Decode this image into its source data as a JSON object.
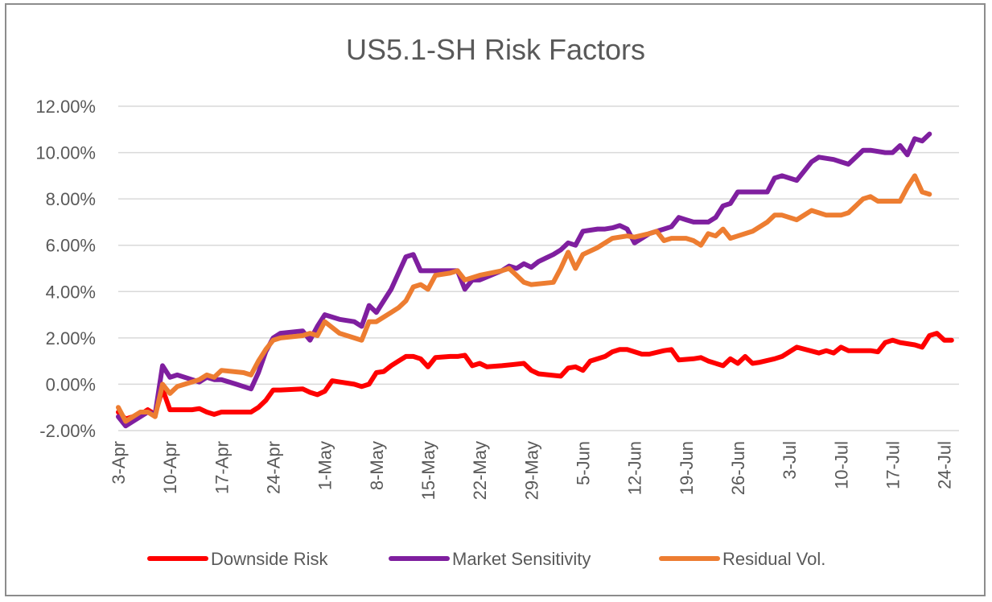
{
  "chart_data": {
    "type": "line",
    "title": "US5.1-SH Risk Factors",
    "xlabel": "",
    "ylabel": "",
    "ylim": [
      -2,
      12
    ],
    "y_ticks": [
      "12.00%",
      "10.00%",
      "8.00%",
      "6.00%",
      "4.00%",
      "2.00%",
      "0.00%",
      "-2.00%"
    ],
    "y_tick_values": [
      12,
      10,
      8,
      6,
      4,
      2,
      0,
      -2
    ],
    "x_tick_labels": [
      "3-Apr",
      "10-Apr",
      "17-Apr",
      "24-Apr",
      "1-May",
      "8-May",
      "15-May",
      "22-May",
      "29-May",
      "5-Jun",
      "12-Jun",
      "19-Jun",
      "26-Jun",
      "3-Jul",
      "10-Jul",
      "17-Jul",
      "24-Jul"
    ],
    "x_tick_days": [
      0,
      7,
      14,
      21,
      28,
      35,
      42,
      49,
      56,
      63,
      70,
      77,
      84,
      91,
      98,
      105,
      112
    ],
    "x_start": "3-Apr",
    "x_end": "25-Jul",
    "grid": true,
    "legend_position": "bottom",
    "series": [
      {
        "name": "Downside Risk",
        "color": "#ff0000",
        "points": [
          [
            0,
            -1.2
          ],
          [
            1,
            -1.5
          ],
          [
            2,
            -1.4
          ],
          [
            3,
            -1.3
          ],
          [
            4,
            -1.1
          ],
          [
            5,
            -1.3
          ],
          [
            6,
            -0.2
          ],
          [
            7,
            -1.1
          ],
          [
            8,
            -1.1
          ],
          [
            10,
            -1.1
          ],
          [
            11,
            -1.05
          ],
          [
            12,
            -1.2
          ],
          [
            13,
            -1.3
          ],
          [
            14,
            -1.2
          ],
          [
            17,
            -1.2
          ],
          [
            18,
            -1.2
          ],
          [
            19,
            -1.0
          ],
          [
            20,
            -0.7
          ],
          [
            21,
            -0.25
          ],
          [
            22,
            -0.25
          ],
          [
            25,
            -0.2
          ],
          [
            26,
            -0.35
          ],
          [
            27,
            -0.45
          ],
          [
            28,
            -0.3
          ],
          [
            29,
            0.15
          ],
          [
            30,
            0.1
          ],
          [
            32,
            0.0
          ],
          [
            33,
            -0.1
          ],
          [
            34,
            0.0
          ],
          [
            35,
            0.5
          ],
          [
            36,
            0.55
          ],
          [
            37,
            0.8
          ],
          [
            38,
            1.0
          ],
          [
            39,
            1.2
          ],
          [
            40,
            1.2
          ],
          [
            41,
            1.1
          ],
          [
            42,
            0.75
          ],
          [
            43,
            1.15
          ],
          [
            45,
            1.2
          ],
          [
            46,
            1.2
          ],
          [
            47,
            1.25
          ],
          [
            48,
            0.8
          ],
          [
            49,
            0.9
          ],
          [
            50,
            0.75
          ],
          [
            52,
            0.8
          ],
          [
            55,
            0.9
          ],
          [
            56,
            0.6
          ],
          [
            57,
            0.45
          ],
          [
            60,
            0.35
          ],
          [
            61,
            0.7
          ],
          [
            62,
            0.75
          ],
          [
            63,
            0.6
          ],
          [
            64,
            1.0
          ],
          [
            66,
            1.2
          ],
          [
            67,
            1.4
          ],
          [
            68,
            1.5
          ],
          [
            69,
            1.5
          ],
          [
            70,
            1.4
          ],
          [
            71,
            1.3
          ],
          [
            72,
            1.3
          ],
          [
            74,
            1.45
          ],
          [
            75,
            1.5
          ],
          [
            76,
            1.05
          ],
          [
            78,
            1.1
          ],
          [
            79,
            1.15
          ],
          [
            80,
            1.0
          ],
          [
            82,
            0.8
          ],
          [
            83,
            1.1
          ],
          [
            84,
            0.9
          ],
          [
            85,
            1.2
          ],
          [
            86,
            0.9
          ],
          [
            87,
            0.95
          ],
          [
            89,
            1.1
          ],
          [
            90,
            1.2
          ],
          [
            92,
            1.6
          ],
          [
            95,
            1.35
          ],
          [
            96,
            1.45
          ],
          [
            97,
            1.35
          ],
          [
            98,
            1.6
          ],
          [
            99,
            1.45
          ],
          [
            102,
            1.45
          ],
          [
            103,
            1.4
          ],
          [
            104,
            1.8
          ],
          [
            105,
            1.9
          ],
          [
            106,
            1.8
          ],
          [
            108,
            1.7
          ],
          [
            109,
            1.6
          ],
          [
            110,
            2.1
          ],
          [
            111,
            2.2
          ],
          [
            112,
            1.9
          ],
          [
            113,
            1.9
          ]
        ]
      },
      {
        "name": "Market Sensitivity",
        "color": "#7f1f9f",
        "points": [
          [
            0,
            -1.4
          ],
          [
            1,
            -1.8
          ],
          [
            2,
            -1.6
          ],
          [
            3,
            -1.4
          ],
          [
            4,
            -1.2
          ],
          [
            5,
            -1.3
          ],
          [
            6,
            0.8
          ],
          [
            7,
            0.3
          ],
          [
            8,
            0.4
          ],
          [
            10,
            0.2
          ],
          [
            11,
            0.1
          ],
          [
            12,
            0.3
          ],
          [
            13,
            0.2
          ],
          [
            14,
            0.2
          ],
          [
            16,
            0.0
          ],
          [
            17,
            -0.1
          ],
          [
            18,
            -0.2
          ],
          [
            19,
            0.5
          ],
          [
            20,
            1.4
          ],
          [
            21,
            2.0
          ],
          [
            22,
            2.2
          ],
          [
            25,
            2.3
          ],
          [
            26,
            1.9
          ],
          [
            27,
            2.5
          ],
          [
            28,
            3.0
          ],
          [
            30,
            2.8
          ],
          [
            32,
            2.7
          ],
          [
            33,
            2.5
          ],
          [
            34,
            3.4
          ],
          [
            35,
            3.1
          ],
          [
            36,
            3.6
          ],
          [
            37,
            4.1
          ],
          [
            38,
            4.8
          ],
          [
            39,
            5.5
          ],
          [
            40,
            5.6
          ],
          [
            41,
            4.9
          ],
          [
            42,
            4.9
          ],
          [
            44,
            4.9
          ],
          [
            46,
            4.9
          ],
          [
            47,
            4.1
          ],
          [
            48,
            4.5
          ],
          [
            49,
            4.5
          ],
          [
            52,
            4.9
          ],
          [
            53,
            5.1
          ],
          [
            54,
            5.0
          ],
          [
            55,
            5.2
          ],
          [
            56,
            5.05
          ],
          [
            57,
            5.3
          ],
          [
            58,
            5.45
          ],
          [
            59,
            5.6
          ],
          [
            60,
            5.8
          ],
          [
            61,
            6.1
          ],
          [
            62,
            6.0
          ],
          [
            63,
            6.6
          ],
          [
            65,
            6.7
          ],
          [
            66,
            6.7
          ],
          [
            67,
            6.75
          ],
          [
            68,
            6.85
          ],
          [
            69,
            6.7
          ],
          [
            70,
            6.1
          ],
          [
            72,
            6.5
          ],
          [
            74,
            6.7
          ],
          [
            75,
            6.8
          ],
          [
            76,
            7.2
          ],
          [
            77,
            7.1
          ],
          [
            78,
            7.0
          ],
          [
            80,
            7.0
          ],
          [
            81,
            7.2
          ],
          [
            82,
            7.7
          ],
          [
            83,
            7.8
          ],
          [
            84,
            8.3
          ],
          [
            86,
            8.3
          ],
          [
            88,
            8.3
          ],
          [
            89,
            8.9
          ],
          [
            90,
            9.0
          ],
          [
            92,
            8.8
          ],
          [
            93,
            9.2
          ],
          [
            94,
            9.6
          ],
          [
            95,
            9.8
          ],
          [
            97,
            9.7
          ],
          [
            98,
            9.6
          ],
          [
            99,
            9.5
          ],
          [
            100,
            9.8
          ],
          [
            101,
            10.1
          ],
          [
            102,
            10.1
          ],
          [
            104,
            10.0
          ],
          [
            105,
            10.0
          ],
          [
            106,
            10.3
          ],
          [
            107,
            9.9
          ],
          [
            108,
            10.6
          ],
          [
            109,
            10.5
          ],
          [
            110,
            10.8
          ]
        ]
      },
      {
        "name": "Residual Vol.",
        "color": "#ed7d31",
        "points": [
          [
            0,
            -1.0
          ],
          [
            1,
            -1.6
          ],
          [
            2,
            -1.4
          ],
          [
            3,
            -1.2
          ],
          [
            4,
            -1.2
          ],
          [
            5,
            -1.4
          ],
          [
            6,
            0.0
          ],
          [
            7,
            -0.4
          ],
          [
            8,
            -0.1
          ],
          [
            10,
            0.1
          ],
          [
            11,
            0.2
          ],
          [
            12,
            0.4
          ],
          [
            13,
            0.3
          ],
          [
            14,
            0.6
          ],
          [
            17,
            0.5
          ],
          [
            18,
            0.4
          ],
          [
            19,
            1.0
          ],
          [
            20,
            1.5
          ],
          [
            21,
            1.9
          ],
          [
            22,
            2.0
          ],
          [
            25,
            2.1
          ],
          [
            26,
            2.2
          ],
          [
            27,
            2.1
          ],
          [
            28,
            2.7
          ],
          [
            30,
            2.2
          ],
          [
            31,
            2.1
          ],
          [
            33,
            1.9
          ],
          [
            34,
            2.7
          ],
          [
            35,
            2.7
          ],
          [
            36,
            2.9
          ],
          [
            37,
            3.1
          ],
          [
            38,
            3.3
          ],
          [
            39,
            3.6
          ],
          [
            40,
            4.2
          ],
          [
            41,
            4.3
          ],
          [
            42,
            4.1
          ],
          [
            43,
            4.7
          ],
          [
            45,
            4.8
          ],
          [
            46,
            4.9
          ],
          [
            47,
            4.5
          ],
          [
            48,
            4.6
          ],
          [
            49,
            4.7
          ],
          [
            52,
            4.9
          ],
          [
            53,
            5.0
          ],
          [
            54,
            4.7
          ],
          [
            55,
            4.4
          ],
          [
            56,
            4.3
          ],
          [
            59,
            4.4
          ],
          [
            60,
            5.0
          ],
          [
            61,
            5.7
          ],
          [
            62,
            5.0
          ],
          [
            63,
            5.6
          ],
          [
            65,
            5.9
          ],
          [
            66,
            6.1
          ],
          [
            67,
            6.3
          ],
          [
            69,
            6.4
          ],
          [
            70,
            6.35
          ],
          [
            72,
            6.5
          ],
          [
            73,
            6.6
          ],
          [
            74,
            6.2
          ],
          [
            75,
            6.3
          ],
          [
            77,
            6.3
          ],
          [
            78,
            6.2
          ],
          [
            79,
            6.0
          ],
          [
            80,
            6.5
          ],
          [
            81,
            6.4
          ],
          [
            82,
            6.7
          ],
          [
            83,
            6.3
          ],
          [
            84,
            6.4
          ],
          [
            86,
            6.6
          ],
          [
            88,
            7.0
          ],
          [
            89,
            7.3
          ],
          [
            90,
            7.3
          ],
          [
            92,
            7.1
          ],
          [
            93,
            7.3
          ],
          [
            94,
            7.5
          ],
          [
            95,
            7.4
          ],
          [
            96,
            7.3
          ],
          [
            98,
            7.3
          ],
          [
            99,
            7.4
          ],
          [
            100,
            7.7
          ],
          [
            101,
            8.0
          ],
          [
            102,
            8.1
          ],
          [
            103,
            7.9
          ],
          [
            104,
            7.9
          ],
          [
            106,
            7.9
          ],
          [
            107,
            8.5
          ],
          [
            108,
            9.0
          ],
          [
            109,
            8.3
          ],
          [
            110,
            8.2
          ]
        ]
      }
    ]
  }
}
